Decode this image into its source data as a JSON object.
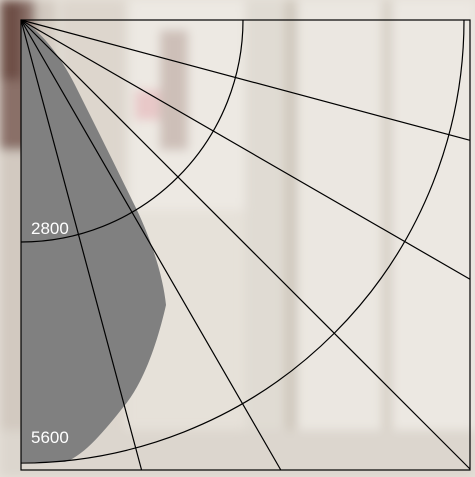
{
  "diagram": {
    "type": "polar-light-distribution",
    "rings": [
      {
        "label": "2800"
      },
      {
        "label": "5600"
      }
    ],
    "spoke_angles_deg": [
      15,
      30,
      45,
      60,
      75
    ],
    "colors": {
      "grid": "#000000",
      "distribution_fill": "#808080",
      "label": "#ffffff",
      "background": "#e5e0d8"
    }
  }
}
